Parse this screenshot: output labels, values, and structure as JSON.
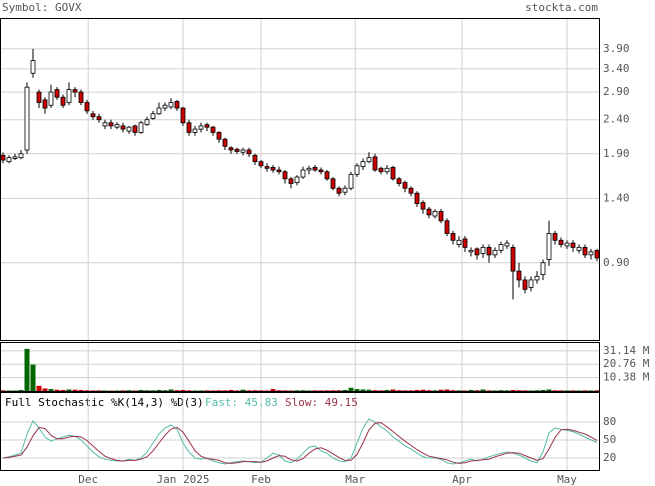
{
  "header": {
    "symbol": "Symbol: GOVX",
    "site": "stockta.com"
  },
  "chart_data": [
    {
      "type": "candlestick",
      "log_scale": true,
      "grid": true,
      "up_color": "#ffffff",
      "down_color": "#cc0000",
      "xlim": [
        -0.5,
        99.5
      ],
      "ylim": [
        0.53,
        4.82
      ],
      "yticks": [
        {
          "value": 3.9,
          "label": "3.90"
        },
        {
          "value": 3.4,
          "label": "3.40"
        },
        {
          "value": 2.9,
          "label": "2.90"
        },
        {
          "value": 2.4,
          "label": "2.40"
        },
        {
          "value": 1.9,
          "label": "1.90"
        },
        {
          "value": 1.4,
          "label": "1.40"
        },
        {
          "value": 0.9,
          "label": "0.90"
        }
      ],
      "open": [
        1.88,
        1.8,
        1.84,
        1.85,
        1.95,
        3.3,
        2.9,
        2.75,
        2.65,
        2.95,
        2.8,
        2.7,
        2.95,
        2.9,
        2.7,
        2.5,
        2.45,
        2.3,
        2.35,
        2.28,
        2.3,
        2.22,
        2.3,
        2.2,
        2.32,
        2.42,
        2.5,
        2.6,
        2.62,
        2.72,
        2.6,
        2.35,
        2.2,
        2.25,
        2.32,
        2.28,
        2.2,
        2.1,
        1.98,
        1.96,
        1.92,
        1.95,
        1.88,
        1.8,
        1.74,
        1.73,
        1.7,
        1.68,
        1.6,
        1.56,
        1.62,
        1.7,
        1.73,
        1.7,
        1.68,
        1.6,
        1.5,
        1.46,
        1.5,
        1.65,
        1.74,
        1.8,
        1.86,
        1.72,
        1.68,
        1.73,
        1.6,
        1.56,
        1.5,
        1.45,
        1.36,
        1.3,
        1.24,
        1.28,
        1.2,
        1.1,
        1.02,
        1.06,
        0.97,
        0.99,
        0.96,
        1.0,
        0.95,
        0.98,
        1.01,
        1.0,
        0.85,
        0.8,
        0.76,
        0.8,
        0.83,
        0.92,
        1.1,
        1.05,
        1.01,
        1.03,
        0.98,
        1.0,
        0.95,
        0.98
      ],
      "high": [
        1.92,
        1.88,
        1.9,
        1.95,
        3.1,
        3.9,
        2.95,
        2.8,
        3.05,
        3.0,
        2.85,
        3.1,
        3.0,
        2.95,
        2.75,
        2.55,
        2.5,
        2.4,
        2.4,
        2.36,
        2.35,
        2.3,
        2.32,
        2.38,
        2.45,
        2.55,
        2.7,
        2.7,
        2.78,
        2.75,
        2.62,
        2.4,
        2.3,
        2.35,
        2.35,
        2.3,
        2.22,
        2.12,
        2.0,
        1.98,
        1.98,
        1.98,
        1.9,
        1.82,
        1.78,
        1.76,
        1.74,
        1.7,
        1.62,
        1.64,
        1.74,
        1.75,
        1.76,
        1.73,
        1.7,
        1.62,
        1.52,
        1.53,
        1.68,
        1.78,
        1.84,
        1.92,
        1.9,
        1.74,
        1.76,
        1.75,
        1.62,
        1.58,
        1.52,
        1.47,
        1.38,
        1.32,
        1.3,
        1.3,
        1.22,
        1.12,
        1.08,
        1.08,
        1.0,
        1.0,
        1.02,
        1.02,
        1.0,
        1.04,
        1.05,
        1.02,
        0.9,
        0.82,
        0.82,
        0.85,
        0.92,
        1.2,
        1.12,
        1.07,
        1.05,
        1.05,
        1.02,
        1.02,
        0.99,
        0.99
      ],
      "low": [
        1.78,
        1.78,
        1.82,
        1.83,
        1.9,
        3.2,
        2.6,
        2.5,
        2.6,
        2.75,
        2.6,
        2.65,
        2.8,
        2.65,
        2.5,
        2.4,
        2.35,
        2.25,
        2.25,
        2.25,
        2.2,
        2.18,
        2.15,
        2.18,
        2.3,
        2.4,
        2.48,
        2.55,
        2.58,
        2.55,
        2.3,
        2.15,
        2.15,
        2.2,
        2.22,
        2.15,
        2.05,
        1.95,
        1.9,
        1.9,
        1.88,
        1.86,
        1.76,
        1.72,
        1.68,
        1.67,
        1.65,
        1.55,
        1.5,
        1.53,
        1.6,
        1.65,
        1.68,
        1.65,
        1.58,
        1.48,
        1.42,
        1.43,
        1.48,
        1.62,
        1.7,
        1.78,
        1.68,
        1.65,
        1.65,
        1.58,
        1.52,
        1.46,
        1.42,
        1.32,
        1.26,
        1.22,
        1.22,
        1.18,
        1.08,
        1.02,
        1.0,
        0.97,
        0.94,
        0.92,
        0.93,
        0.9,
        0.93,
        0.96,
        0.99,
        0.7,
        0.76,
        0.73,
        0.74,
        0.78,
        0.8,
        0.88,
        1.02,
        1.0,
        0.99,
        0.97,
        0.96,
        0.93,
        0.92,
        0.91
      ],
      "close": [
        1.82,
        1.85,
        1.86,
        1.9,
        3.0,
        3.6,
        2.7,
        2.6,
        2.9,
        2.8,
        2.65,
        2.95,
        2.9,
        2.7,
        2.55,
        2.45,
        2.4,
        2.35,
        2.3,
        2.32,
        2.25,
        2.28,
        2.2,
        2.35,
        2.4,
        2.5,
        2.6,
        2.65,
        2.7,
        2.6,
        2.35,
        2.2,
        2.25,
        2.3,
        2.28,
        2.2,
        2.1,
        2.0,
        1.95,
        1.93,
        1.95,
        1.9,
        1.8,
        1.75,
        1.72,
        1.7,
        1.68,
        1.6,
        1.55,
        1.62,
        1.7,
        1.72,
        1.7,
        1.68,
        1.6,
        1.5,
        1.45,
        1.5,
        1.65,
        1.75,
        1.8,
        1.85,
        1.7,
        1.68,
        1.72,
        1.6,
        1.55,
        1.5,
        1.45,
        1.35,
        1.3,
        1.25,
        1.28,
        1.2,
        1.1,
        1.05,
        1.05,
        1.0,
        0.98,
        0.95,
        1.0,
        0.95,
        0.98,
        1.02,
        1.03,
        0.85,
        0.8,
        0.75,
        0.8,
        0.82,
        0.9,
        1.1,
        1.05,
        1.02,
        1.03,
        1.0,
        1.0,
        0.95,
        0.97,
        0.93
      ]
    },
    {
      "type": "bar",
      "grid": true,
      "up_color": "#006600",
      "down_color": "#cc0000",
      "xlim": [
        -0.5,
        99.5
      ],
      "ylim": [
        0,
        38
      ],
      "yticks": [
        {
          "value": 31.14,
          "label": "31.14 M"
        },
        {
          "value": 20.76,
          "label": "20.76 M"
        },
        {
          "value": 10.38,
          "label": "10.38 M"
        }
      ],
      "values": [
        0.5,
        0.4,
        0.4,
        0.8,
        32.7,
        20.5,
        4,
        2,
        1.5,
        1,
        0.8,
        1.2,
        1,
        0.8,
        0.5,
        0.4,
        0.5,
        0.4,
        0.3,
        0.4,
        0.5,
        0.6,
        0.4,
        0.8,
        0.6,
        0.5,
        0.8,
        0.6,
        1.2,
        0.6,
        0.8,
        0.5,
        0.4,
        0.4,
        0.5,
        0.4,
        0.6,
        0.5,
        0.8,
        0.4,
        1.0,
        0.5,
        0.6,
        0.5,
        0.4,
        1.5,
        0.6,
        0.5,
        0.4,
        0.5,
        0.6,
        0.4,
        0.5,
        0.4,
        0.5,
        0.6,
        0.6,
        0.8,
        2.5,
        1.5,
        1.2,
        1.0,
        0.6,
        0.5,
        0.8,
        1.2,
        0.6,
        0.5,
        0.5,
        0.8,
        1.0,
        0.6,
        0.5,
        1.0,
        1.2,
        0.6,
        0.5,
        0.4,
        0.8,
        0.6,
        1.2,
        0.5,
        0.4,
        0.6,
        0.5,
        0.8,
        0.6,
        0.5,
        0.4,
        0.6,
        0.8,
        1.2,
        0.6,
        0.5,
        0.4,
        0.5,
        0.4,
        0.5,
        0.4,
        0.5
      ]
    },
    {
      "type": "line",
      "title": "Full Stochastic %K(14,3) %D(3)",
      "grid": true,
      "xlim": [
        -0.5,
        99.5
      ],
      "ylim": [
        0,
        130
      ],
      "yticks": [
        80,
        50,
        20
      ],
      "xticks": [
        {
          "value": 14.2,
          "label": "Dec"
        },
        {
          "value": 30,
          "label": "Jan 2025"
        },
        {
          "value": 43,
          "label": "Feb"
        },
        {
          "value": 58.7,
          "label": "Mar"
        },
        {
          "value": 76.5,
          "label": "Apr"
        },
        {
          "value": 94,
          "label": "May"
        }
      ],
      "series": [
        {
          "name": "Fast",
          "legend_label": "Fast: 45.83",
          "color": "#55bbaa",
          "values": [
            20,
            22,
            25,
            28,
            60,
            82,
            70,
            55,
            48,
            52,
            55,
            58,
            56,
            50,
            40,
            30,
            22,
            18,
            16,
            15,
            15,
            18,
            16,
            20,
            30,
            45,
            60,
            70,
            75,
            68,
            45,
            30,
            20,
            18,
            20,
            15,
            12,
            10,
            12,
            14,
            15,
            14,
            12,
            13,
            20,
            28,
            25,
            15,
            12,
            18,
            28,
            38,
            40,
            32,
            28,
            20,
            15,
            14,
            20,
            45,
            70,
            85,
            80,
            72,
            65,
            55,
            48,
            40,
            35,
            28,
            22,
            20,
            20,
            18,
            12,
            10,
            12,
            15,
            18,
            15,
            18,
            22,
            25,
            28,
            30,
            28,
            25,
            20,
            15,
            12,
            30,
            62,
            70,
            68,
            66,
            64,
            60,
            55,
            50,
            45.83
          ]
        },
        {
          "name": "Slow",
          "legend_label": "Slow: 49.15",
          "color": "#993344",
          "values": [
            20,
            21,
            23,
            25,
            38,
            57,
            71,
            69,
            58,
            52,
            52,
            55,
            56,
            55,
            49,
            40,
            31,
            23,
            19,
            16,
            15,
            16,
            16,
            18,
            22,
            32,
            45,
            58,
            68,
            71,
            63,
            48,
            32,
            23,
            19,
            18,
            16,
            12,
            11,
            12,
            14,
            14,
            14,
            13,
            15,
            20,
            24,
            23,
            17,
            15,
            19,
            28,
            35,
            37,
            33,
            27,
            21,
            16,
            16,
            26,
            45,
            67,
            78,
            79,
            72,
            64,
            56,
            48,
            41,
            34,
            28,
            23,
            21,
            19,
            17,
            13,
            11,
            12,
            15,
            16,
            17,
            18,
            22,
            25,
            28,
            29,
            28,
            24,
            20,
            16,
            19,
            35,
            54,
            67,
            68,
            66,
            63,
            60,
            55,
            49.15
          ]
        }
      ]
    }
  ]
}
